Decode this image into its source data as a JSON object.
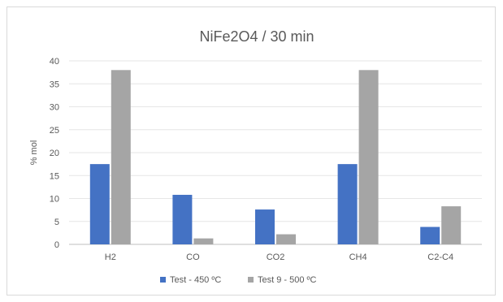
{
  "chart_data": {
    "type": "bar",
    "title": "NiFe2O4 / 30 min",
    "xlabel": "",
    "ylabel": "% mol",
    "ylim": [
      0,
      40
    ],
    "yticks": [
      0,
      5,
      10,
      15,
      20,
      25,
      30,
      35,
      40
    ],
    "grid": true,
    "legend_position": "bottom",
    "categories": [
      "H2",
      "CO",
      "CO2",
      "CH4",
      "C2-C4"
    ],
    "series": [
      {
        "name": "Test  - 450 ºC",
        "color": "#4472c4",
        "values": [
          17.5,
          10.8,
          7.6,
          17.5,
          3.8
        ]
      },
      {
        "name": "Test 9 - 500 ºC",
        "color": "#a5a5a5",
        "values": [
          38,
          1.3,
          2.2,
          38,
          8.3
        ]
      }
    ]
  }
}
